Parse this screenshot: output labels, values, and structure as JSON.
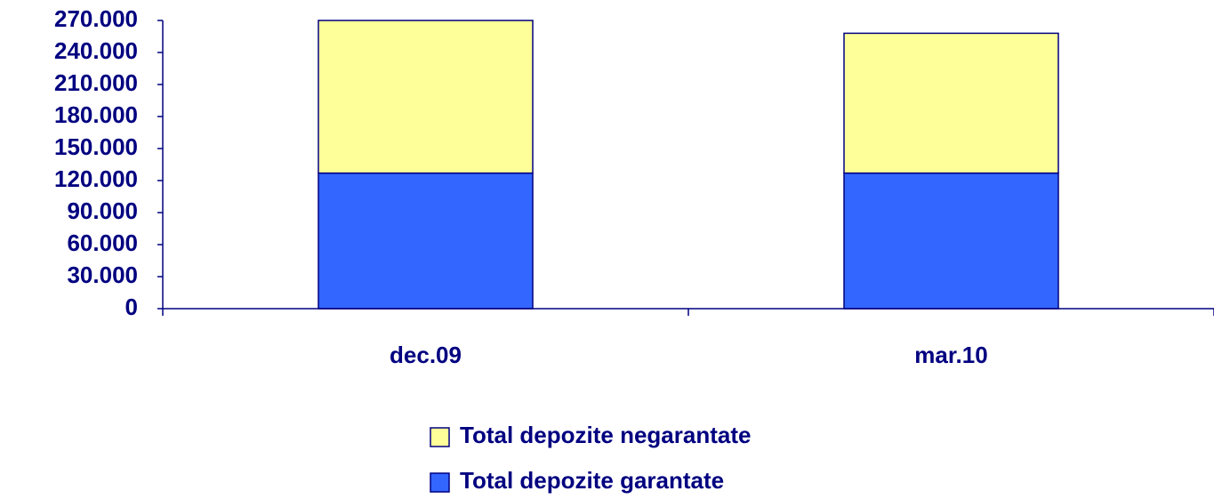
{
  "chart_data": {
    "type": "stacked_bar",
    "categories": [
      "dec.09",
      "mar.10"
    ],
    "series": [
      {
        "name": "Total depozite garantate",
        "color": "#3366ff",
        "values": [
          127000,
          127000
        ]
      },
      {
        "name": "Total depozite negarantate",
        "color": "#ffff99",
        "values": [
          143000,
          131000
        ]
      }
    ],
    "ylim": [
      0,
      270000
    ],
    "yticks": [
      0,
      {
        "value": 30000,
        "label": "30.000"
      },
      {
        "value": 60000,
        "label": "60.000"
      },
      {
        "value": 90000,
        "label": "90.000"
      },
      {
        "value": 120000,
        "label": "120.000"
      },
      {
        "value": 150000,
        "label": "150.000"
      },
      {
        "value": 180000,
        "label": "180.000"
      },
      {
        "value": 210000,
        "label": "210.000"
      },
      {
        "value": 240000,
        "label": "240.000"
      },
      {
        "value": 270000,
        "label": "270.000"
      }
    ],
    "bar_edge_color": "#000080"
  }
}
